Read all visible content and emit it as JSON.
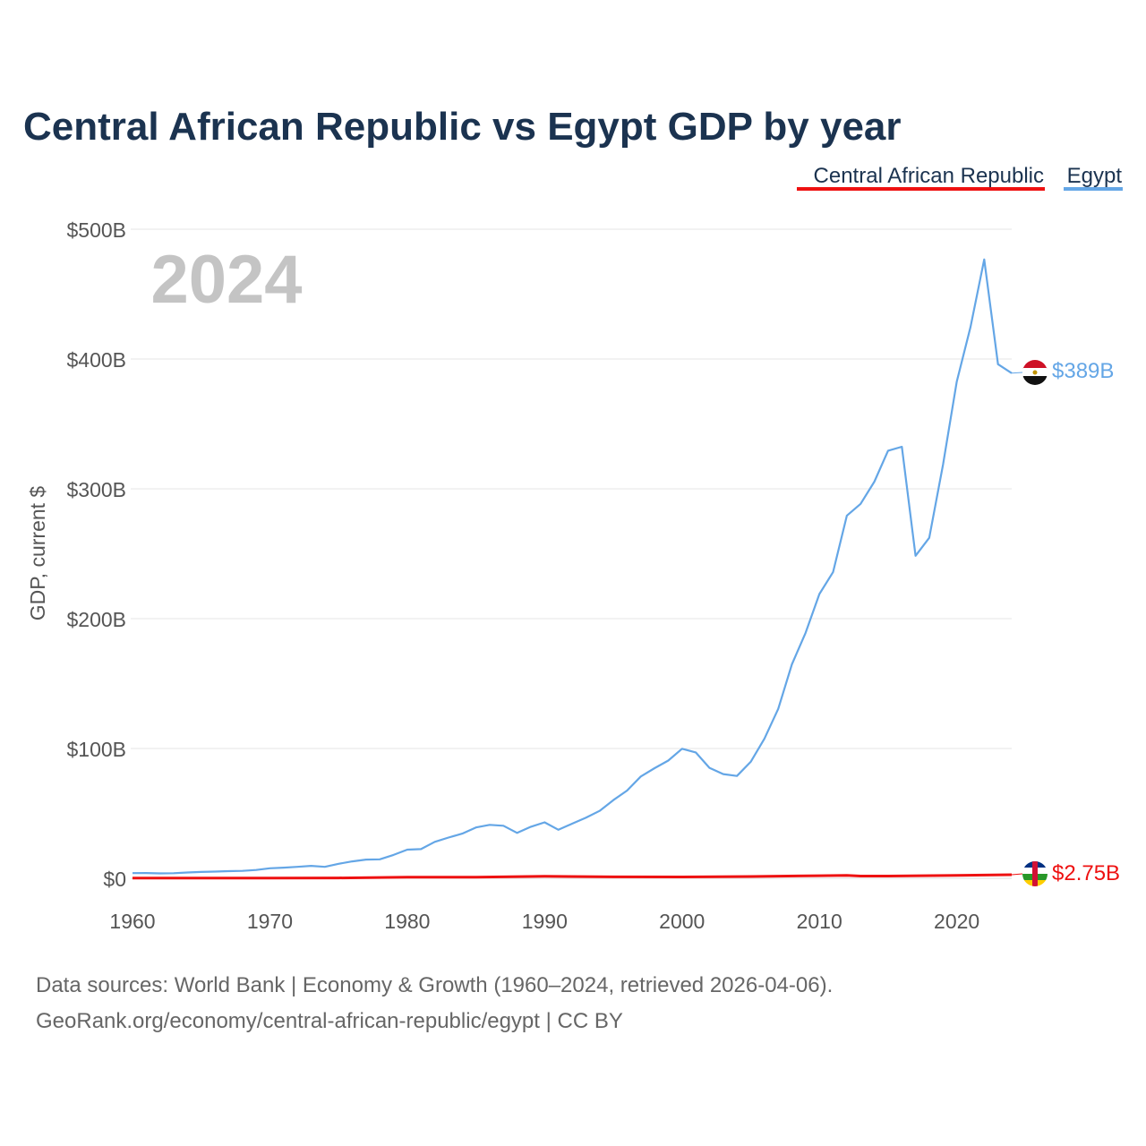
{
  "title": "Central African Republic vs Egypt GDP by year",
  "current_year_label": "2024",
  "footer": {
    "line1": "Data sources: World Bank | Economy & Growth (1960–2024, retrieved 2026-04-06).",
    "line2": "GeoRank.org/economy/central-african-republic/egypt | CC BY"
  },
  "colors": {
    "car": "#ee1111",
    "egypt": "#64a6e6",
    "title": "#1b3350",
    "grid": "#e6e6e6"
  },
  "chart_data": {
    "type": "line",
    "title": "Central African Republic vs Egypt GDP by year",
    "ylabel": "GDP, current $",
    "xlabel": "",
    "ylim": [
      0,
      500
    ],
    "y_unit": "billions of current US$",
    "y_ticks": [
      0,
      100,
      200,
      300,
      400,
      500
    ],
    "y_tick_labels": [
      "$0",
      "$100B",
      "$200B",
      "$300B",
      "$400B",
      "$500B"
    ],
    "x_ticks": [
      1960,
      1970,
      1980,
      1990,
      2000,
      2010,
      2020
    ],
    "x_tick_labels": [
      "1960",
      "1970",
      "1980",
      "1990",
      "2000",
      "2010",
      "2020"
    ],
    "xlim": [
      1960,
      2024
    ],
    "legend_position": "top-right",
    "series": [
      {
        "name": "Central African Republic",
        "color": "#ee1111",
        "end_label": "$2.75B",
        "flag": "central-african-republic-flag",
        "x": [
          1960,
          1965,
          1970,
          1975,
          1980,
          1985,
          1990,
          1995,
          2000,
          2005,
          2010,
          2012,
          2013,
          2015,
          2020,
          2024
        ],
        "values": [
          0.11,
          0.15,
          0.18,
          0.3,
          0.8,
          0.9,
          1.5,
          1.1,
          1.0,
          1.4,
          2.0,
          2.2,
          1.7,
          1.7,
          2.3,
          2.75
        ]
      },
      {
        "name": "Egypt",
        "color": "#64a6e6",
        "end_label": "$389B",
        "flag": "egypt-flag",
        "x": [
          1960,
          1961,
          1962,
          1963,
          1964,
          1965,
          1966,
          1967,
          1968,
          1969,
          1970,
          1971,
          1972,
          1973,
          1974,
          1975,
          1976,
          1977,
          1978,
          1979,
          1980,
          1981,
          1982,
          1983,
          1984,
          1985,
          1986,
          1987,
          1988,
          1989,
          1990,
          1991,
          1992,
          1993,
          1994,
          1995,
          1996,
          1997,
          1998,
          1999,
          2000,
          2001,
          2002,
          2003,
          2004,
          2005,
          2006,
          2007,
          2008,
          2009,
          2010,
          2011,
          2012,
          2013,
          2014,
          2015,
          2016,
          2017,
          2018,
          2019,
          2020,
          2021,
          2022,
          2023,
          2024
        ],
        "values": [
          4.0,
          4.1,
          3.8,
          3.9,
          4.5,
          4.9,
          5.2,
          5.5,
          5.7,
          6.4,
          7.7,
          8.2,
          8.8,
          9.6,
          8.8,
          11.2,
          13.0,
          14.4,
          14.6,
          18.0,
          22.1,
          22.5,
          28.1,
          31.4,
          34.4,
          39.2,
          41.2,
          40.5,
          35.0,
          39.7,
          43.1,
          37.4,
          42.1,
          46.6,
          51.9,
          60.2,
          67.6,
          78.4,
          84.8,
          90.7,
          99.8,
          97.0,
          85.1,
          80.3,
          78.8,
          89.7,
          107.5,
          130.5,
          164.8,
          189.1,
          219.0,
          235.9,
          279.4,
          288.4,
          305.5,
          329.4,
          332.4,
          248.4,
          262.3,
          318.7,
          382.5,
          424.7,
          476.7,
          396.0,
          389.1
        ]
      }
    ]
  }
}
